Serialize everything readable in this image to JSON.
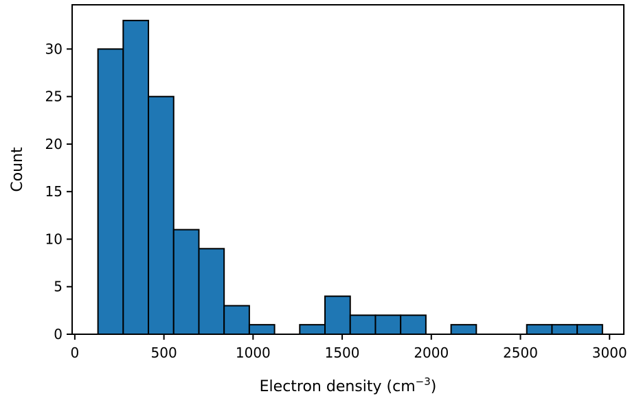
{
  "chart_data": {
    "type": "bar",
    "title": "",
    "xlabel": "Electron density (cm",
    "xlabel_sup": "−3",
    "xlabel_close": ")",
    "ylabel": "Count",
    "xlim": [
      -15,
      3080
    ],
    "ylim": [
      0,
      34.65
    ],
    "xticks": [
      0,
      500,
      1000,
      1500,
      2000,
      2500,
      3000
    ],
    "xtick_labels": [
      "0",
      "500",
      "1000",
      "1500",
      "2000",
      "2500",
      "3000"
    ],
    "yticks": [
      0,
      5,
      10,
      15,
      20,
      25,
      30
    ],
    "ytick_labels": [
      "0",
      "5",
      "10",
      "15",
      "20",
      "25",
      "30"
    ],
    "bin_edges": [
      130,
      271.5,
      413,
      554.5,
      696,
      837.5,
      979,
      1120.5,
      1262,
      1403.5,
      1545,
      1686.5,
      1828,
      1969.5,
      2111,
      2252.5,
      2394,
      2535.5,
      2677,
      2818.5,
      2960
    ],
    "values": [
      30,
      33,
      25,
      11,
      9,
      3,
      1,
      0,
      1,
      4,
      2,
      2,
      2,
      0,
      1,
      0,
      0,
      1,
      1,
      1
    ],
    "grid": false,
    "colors": {
      "bar_fill": "#1f77b4",
      "bar_edge": "#000000"
    }
  }
}
